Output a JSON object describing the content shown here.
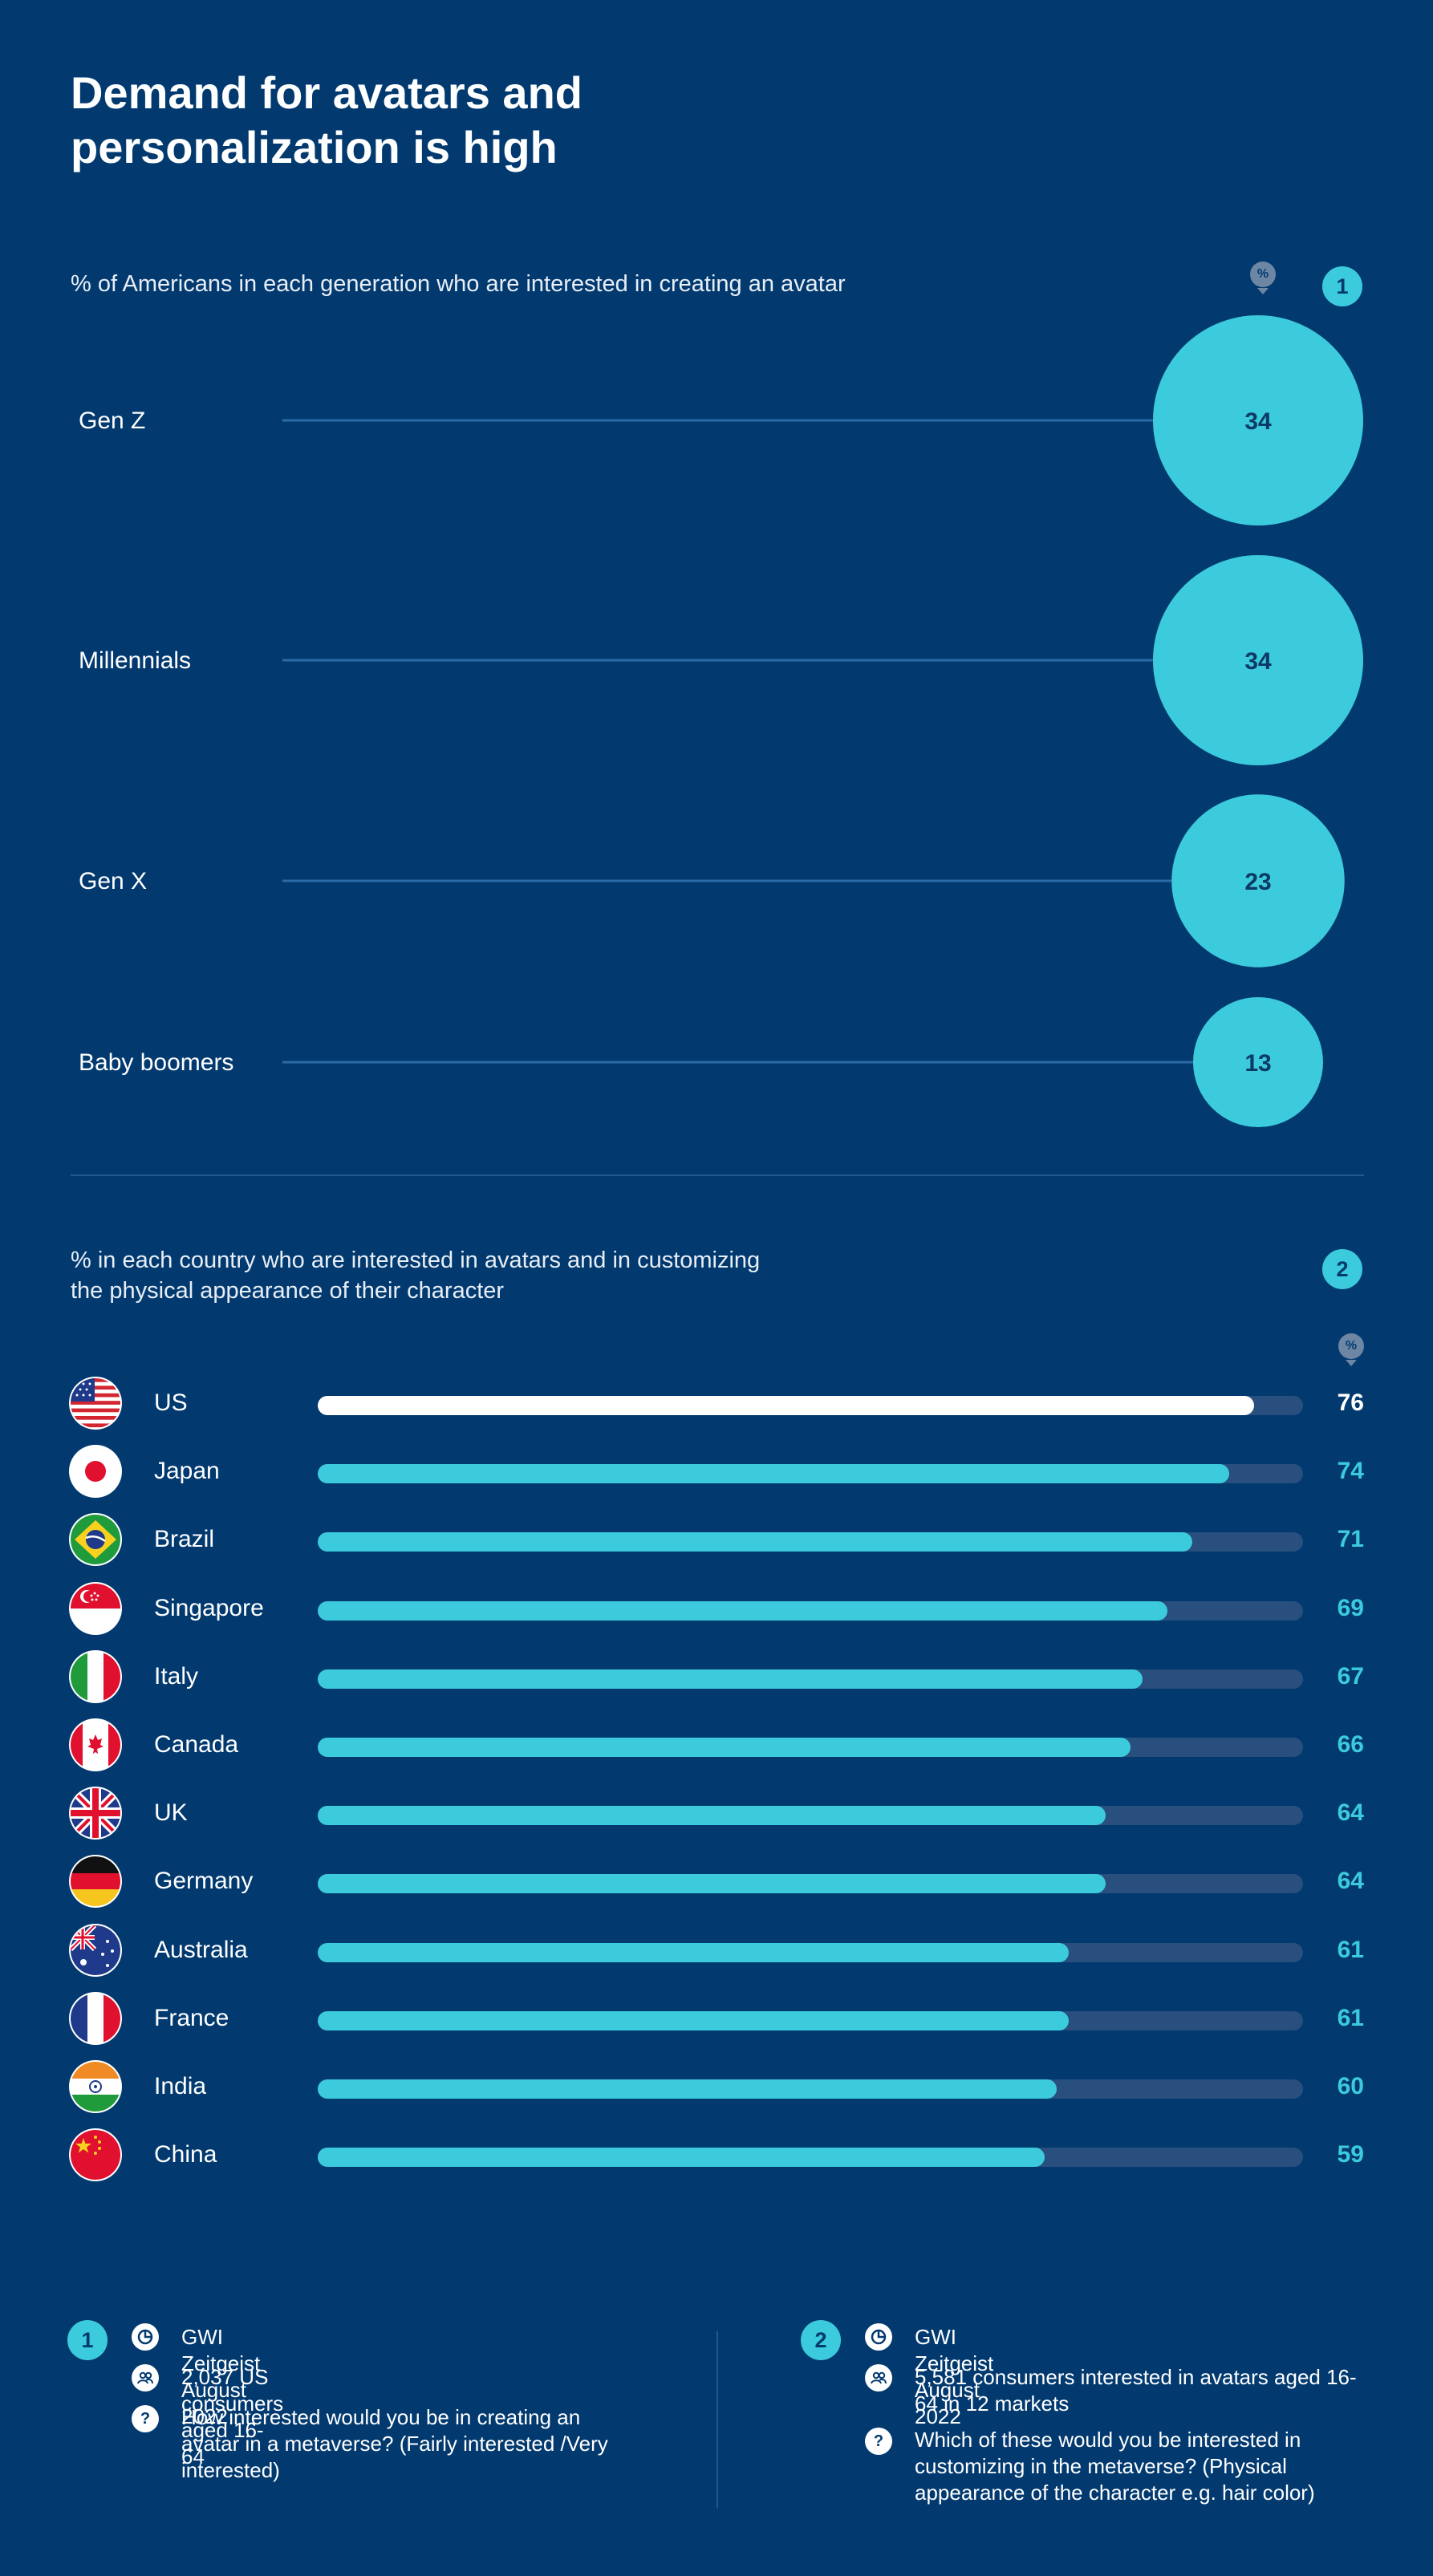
{
  "title": "Demand for avatars and personalization is high",
  "section1": {
    "subtitle": "% of Americans in each generation who are interested in creating an avatar",
    "badge": "1",
    "unit_tag": "%"
  },
  "section2": {
    "subtitle": "% in each country who are interested in avatars and in customizing the physical appearance of their character",
    "badge": "2",
    "unit_tag": "%"
  },
  "chart_data": [
    {
      "type": "bubble",
      "categories": [
        "Gen Z",
        "Millennials",
        "Gen X",
        "Baby boomers"
      ],
      "values": [
        34,
        34,
        23,
        13
      ],
      "unit": "%",
      "color": "#3ccbdc"
    },
    {
      "type": "bar",
      "orientation": "horizontal",
      "categories": [
        "US",
        "Japan",
        "Brazil",
        "Singapore",
        "Italy",
        "Canada",
        "UK",
        "Germany",
        "Australia",
        "France",
        "India",
        "China"
      ],
      "values": [
        76,
        74,
        71,
        69,
        67,
        66,
        64,
        64,
        61,
        61,
        60,
        59
      ],
      "unit": "%",
      "xlim": [
        0,
        80
      ],
      "highlight": "US",
      "colors": {
        "bar": "#3ccbdc",
        "highlight": "#ffffff",
        "track": "#284f7e"
      }
    }
  ],
  "footer": {
    "left": {
      "badge": "1",
      "source": "GWI Zeitgeist August 2022",
      "sample": "2,037 US consumers aged 16-64",
      "question": "How interested would you be in creating an avatar in a metaverse? (Fairly interested /Very interested)"
    },
    "right": {
      "badge": "2",
      "source": "GWI Zeitgeist August 2022",
      "sample": "5,581 consumers interested in avatars aged 16-64 in 12 markets",
      "question": "Which of these would you be interested in customizing in the metaverse? (Physical appearance of the character e.g. hair color)"
    }
  },
  "colors": {
    "background": "#023a70",
    "accent": "#3ccbdc",
    "track": "#284f7e"
  }
}
